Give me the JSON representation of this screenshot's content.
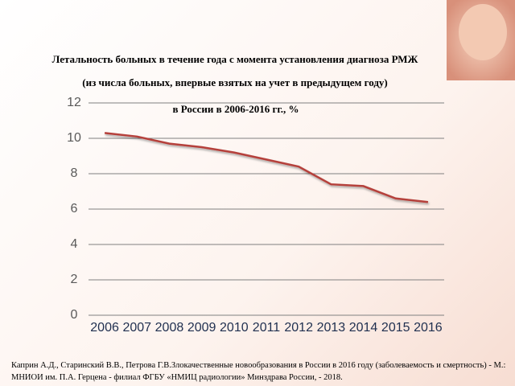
{
  "chart_data": {
    "type": "line",
    "title": "Летальность больных в течение года с момента установления диагноза РМЖ",
    "subtitle": "(из числа больных, впервые взятых на учет в предыдущем году)",
    "subtitle_2": "в России в 2006-2016 гг., %",
    "categories": [
      "2006",
      "2007",
      "2008",
      "2009",
      "2010",
      "2011",
      "2012",
      "2013",
      "2014",
      "2015",
      "2016"
    ],
    "values": [
      10.3,
      10.1,
      9.7,
      9.5,
      9.2,
      8.8,
      8.4,
      7.4,
      7.3,
      6.6,
      6.4
    ],
    "color": "#b5403b",
    "ylim": [
      0,
      12
    ],
    "yticks": [
      0,
      2,
      4,
      6,
      8,
      10,
      12
    ],
    "grid": true,
    "source": "Каприн А.Д., Старинский В.В., Петрова Г.В.Злокачественные новообразования в России в 2016 году (заболеваемость и смертность) - М.: МНИОИ им. П.А. Герцена - филиал ФГБУ «НМИЦ радиологии» Минздрава России, - 2018."
  }
}
